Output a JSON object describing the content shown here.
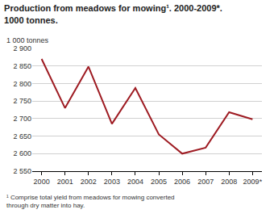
{
  "chart_data": {
    "type": "line",
    "title": [
      "Production from meadows for mowing¹. 2000-2009*.",
      "1000 tonnes."
    ],
    "y_label": "1 000 tonnes",
    "footnote": [
      "¹ Comprise total yield from meadows for mowing converted",
      "through dry matter into hay."
    ],
    "categories": [
      "2000",
      "2001",
      "2002",
      "2003",
      "2004",
      "2005",
      "2006",
      "2007",
      "2008",
      "2009*"
    ],
    "values": [
      2870,
      2730,
      2848,
      2685,
      2787,
      2655,
      2600,
      2617,
      2718,
      2698
    ],
    "color": "#9e1b22",
    "ylim": [
      2550,
      2900
    ],
    "yticks": [
      {
        "value": 2550,
        "label": "2 550"
      },
      {
        "value": 2600,
        "label": "2 600"
      },
      {
        "value": 2650,
        "label": "2 650"
      },
      {
        "value": 2700,
        "label": "2 700"
      },
      {
        "value": 2750,
        "label": "2 750"
      },
      {
        "value": 2800,
        "label": "2 800"
      },
      {
        "value": 2850,
        "label": "2 850"
      },
      {
        "value": 2900,
        "label": "2 900"
      }
    ],
    "grid": true
  }
}
